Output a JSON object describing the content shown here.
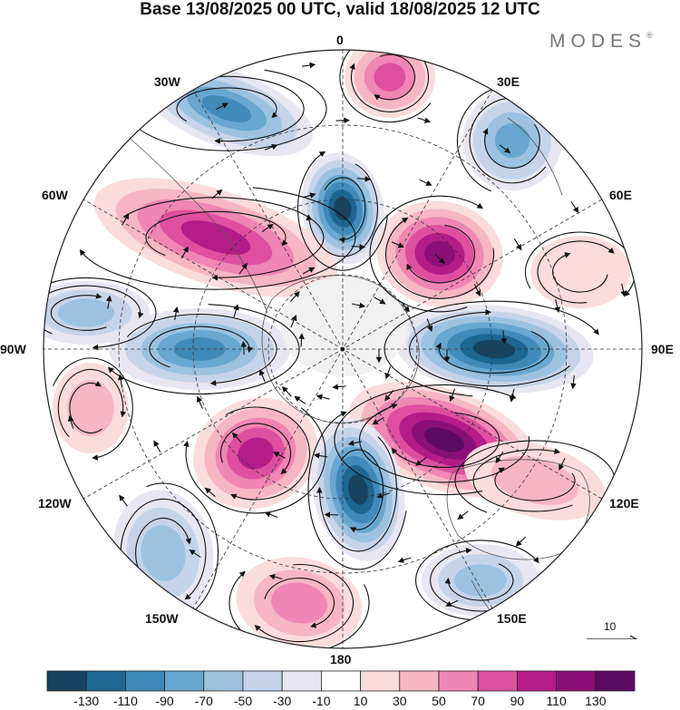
{
  "header": {
    "title": "Base 13/08/2025 00 UTC, valid 18/08/2025 12 UTC",
    "brand": "MODES",
    "brand_mark": "®"
  },
  "longitude_labels": {
    "north": "0",
    "ne30": "30E",
    "ne60": "60E",
    "east": "90E",
    "se120": "120E",
    "se150": "150E",
    "south": "180",
    "sw150": "150W",
    "sw120": "120W",
    "west": "90W",
    "nw60": "60W",
    "nw30": "30W"
  },
  "reference_vector": {
    "value": "10"
  },
  "colorbar": {
    "ticks": [
      "-130",
      "-110",
      "-90",
      "-70",
      "-50",
      "-30",
      "-10",
      "10",
      "30",
      "50",
      "70",
      "90",
      "110",
      "130"
    ],
    "colors": [
      "#16435f",
      "#1c6691",
      "#3f8ab9",
      "#68a7cf",
      "#9cc2e0",
      "#c6d4ea",
      "#e7e6f2",
      "#ffffff",
      "#fbdcdc",
      "#f6b6c4",
      "#ef86b4",
      "#de4f9f",
      "#b41c87",
      "#8a0f76",
      "#5d0a62"
    ]
  },
  "colors": {
    "land_outline": "#555555",
    "graticule": "#333333",
    "neutral_pole": "#f1f1f1"
  }
}
